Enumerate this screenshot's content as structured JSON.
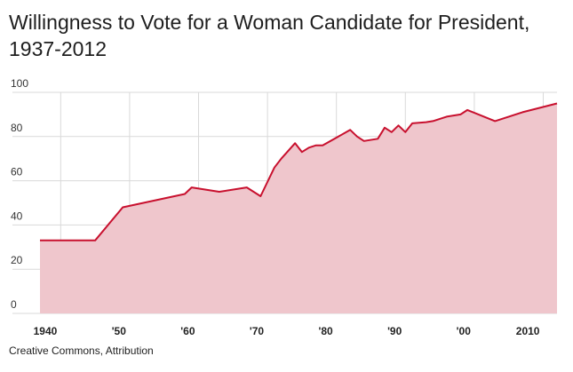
{
  "chart_data": {
    "type": "area",
    "title": "Willingness to Vote for a Woman Candidate for President, 1937-2012",
    "xlabel": "",
    "ylabel": "",
    "xlim": [
      1933,
      2012
    ],
    "ylim": [
      0,
      100
    ],
    "grid": true,
    "yticks": [
      0,
      20,
      40,
      60,
      80,
      100
    ],
    "ytick_labels": [
      "0",
      "20",
      "40",
      "60",
      "80",
      "100"
    ],
    "xticks": [
      1940,
      1950,
      1960,
      1970,
      1980,
      1990,
      2000,
      2010
    ],
    "xtick_labels": [
      "1940",
      "'50",
      "'60",
      "'70",
      "'80",
      "'90",
      "'00",
      "2010"
    ],
    "series": [
      {
        "name": "Willingness to vote for a woman candidate",
        "color": "#c8102e",
        "fill": "#efc6cc",
        "x": [
          1937,
          1945,
          1949,
          1955,
          1958,
          1959,
          1963,
          1967,
          1969,
          1971,
          1972,
          1974,
          1975,
          1976,
          1977,
          1978,
          1982,
          1983,
          1984,
          1986,
          1987,
          1988,
          1989,
          1990,
          1991,
          1993,
          1994,
          1996,
          1997,
          1998,
          1999,
          2003,
          2005,
          2007,
          2012
        ],
        "values": [
          33,
          33,
          48,
          52,
          54,
          57,
          55,
          57,
          53,
          66,
          70,
          77,
          73,
          75,
          76,
          76,
          83,
          80,
          78,
          79,
          84,
          82,
          85,
          82,
          86,
          86.5,
          87,
          89,
          89.5,
          90,
          92,
          87,
          89,
          91,
          95
        ]
      }
    ]
  },
  "source_credit": "Creative Commons, Attribution"
}
